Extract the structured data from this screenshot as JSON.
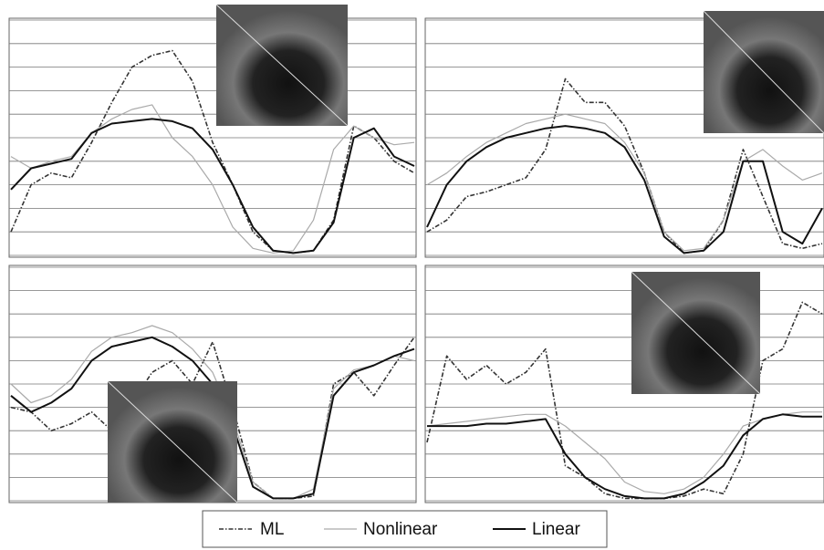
{
  "chart_data": [
    {
      "type": "line",
      "x": [
        0,
        5,
        10,
        15,
        20,
        25,
        30,
        35,
        40,
        45,
        50,
        55,
        60,
        65,
        70,
        75,
        80,
        85,
        90,
        95,
        100
      ],
      "xlim": [
        0,
        100
      ],
      "ylim": [
        0,
        100
      ],
      "yticks": [
        0,
        10,
        20,
        30,
        40,
        50,
        60,
        70,
        80,
        90,
        100
      ],
      "grid": true,
      "series": [
        {
          "name": "ML",
          "color": "#333333",
          "style": "dashdot",
          "values": [
            10,
            30,
            35,
            33,
            48,
            65,
            80,
            85,
            87,
            74,
            48,
            30,
            10,
            2,
            1,
            2,
            15,
            55,
            50,
            40,
            35
          ]
        },
        {
          "name": "Nonlinear",
          "color": "#aaaaaa",
          "style": "solid",
          "values": [
            42,
            37,
            40,
            42,
            52,
            58,
            62,
            64,
            50,
            42,
            30,
            12,
            3,
            1,
            2,
            15,
            45,
            55,
            50,
            47,
            48
          ]
        },
        {
          "name": "Linear",
          "color": "#111111",
          "style": "thick",
          "values": [
            28,
            37,
            39,
            41,
            52,
            56,
            57,
            58,
            57,
            54,
            45,
            30,
            12,
            2,
            1,
            2,
            14,
            50,
            54,
            42,
            38
          ]
        }
      ]
    },
    {
      "type": "line",
      "x": [
        0,
        5,
        10,
        15,
        20,
        25,
        30,
        35,
        40,
        45,
        50,
        55,
        60,
        65,
        70,
        75,
        80,
        85,
        90,
        95,
        100
      ],
      "xlim": [
        0,
        100
      ],
      "ylim": [
        0,
        100
      ],
      "yticks": [
        0,
        10,
        20,
        30,
        40,
        50,
        60,
        70,
        80,
        90,
        100
      ],
      "grid": true,
      "series": [
        {
          "name": "ML",
          "color": "#333333",
          "style": "dashdot",
          "values": [
            10,
            15,
            25,
            27,
            30,
            33,
            45,
            75,
            65,
            65,
            55,
            35,
            10,
            1,
            2,
            15,
            45,
            25,
            5,
            3,
            5
          ]
        },
        {
          "name": "Nonlinear",
          "color": "#aaaaaa",
          "style": "solid",
          "values": [
            30,
            35,
            42,
            48,
            52,
            56,
            58,
            60,
            58,
            56,
            48,
            35,
            10,
            2,
            3,
            15,
            40,
            45,
            38,
            32,
            35
          ]
        },
        {
          "name": "Linear",
          "color": "#111111",
          "style": "thick",
          "values": [
            12,
            30,
            40,
            46,
            50,
            52,
            54,
            55,
            54,
            52,
            46,
            32,
            8,
            1,
            2,
            10,
            40,
            40,
            10,
            5,
            20
          ]
        }
      ]
    },
    {
      "type": "line",
      "x": [
        0,
        5,
        10,
        15,
        20,
        25,
        30,
        35,
        40,
        45,
        50,
        55,
        60,
        65,
        70,
        75,
        80,
        85,
        90,
        95,
        100
      ],
      "xlim": [
        0,
        100
      ],
      "ylim": [
        0,
        100
      ],
      "yticks": [
        0,
        10,
        20,
        30,
        40,
        50,
        60,
        70,
        80,
        90,
        100
      ],
      "grid": true,
      "series": [
        {
          "name": "ML",
          "color": "#333333",
          "style": "dashdot",
          "values": [
            40,
            38,
            30,
            33,
            38,
            30,
            42,
            55,
            60,
            50,
            68,
            40,
            8,
            1,
            1,
            2,
            50,
            55,
            45,
            58,
            70
          ]
        },
        {
          "name": "Nonlinear",
          "color": "#aaaaaa",
          "style": "solid",
          "values": [
            50,
            42,
            45,
            52,
            64,
            70,
            72,
            75,
            72,
            65,
            55,
            35,
            8,
            1,
            1,
            5,
            48,
            56,
            58,
            62,
            60
          ]
        },
        {
          "name": "Linear",
          "color": "#111111",
          "style": "thick",
          "values": [
            45,
            38,
            42,
            48,
            60,
            66,
            68,
            70,
            66,
            60,
            50,
            32,
            6,
            1,
            1,
            3,
            45,
            55,
            58,
            62,
            65
          ]
        }
      ]
    },
    {
      "type": "line",
      "x": [
        0,
        5,
        10,
        15,
        20,
        25,
        30,
        35,
        40,
        45,
        50,
        55,
        60,
        65,
        70,
        75,
        80,
        85,
        90,
        95,
        100
      ],
      "xlim": [
        0,
        100
      ],
      "ylim": [
        0,
        100
      ],
      "yticks": [
        0,
        10,
        20,
        30,
        40,
        50,
        60,
        70,
        80,
        90,
        100
      ],
      "grid": true,
      "series": [
        {
          "name": "ML",
          "color": "#333333",
          "style": "dashdot",
          "values": [
            25,
            62,
            52,
            58,
            50,
            55,
            65,
            15,
            10,
            3,
            1,
            1,
            1,
            2,
            5,
            3,
            20,
            60,
            65,
            85,
            80
          ]
        },
        {
          "name": "Nonlinear",
          "color": "#aaaaaa",
          "style": "solid",
          "values": [
            32,
            33,
            34,
            35,
            36,
            37,
            37,
            32,
            25,
            18,
            8,
            4,
            3,
            5,
            10,
            20,
            32,
            35,
            37,
            38,
            38
          ]
        },
        {
          "name": "Linear",
          "color": "#111111",
          "style": "thick",
          "values": [
            32,
            32,
            32,
            33,
            33,
            34,
            35,
            20,
            10,
            5,
            2,
            1,
            1,
            3,
            8,
            15,
            28,
            35,
            37,
            36,
            36
          ]
        }
      ]
    }
  ]
}
